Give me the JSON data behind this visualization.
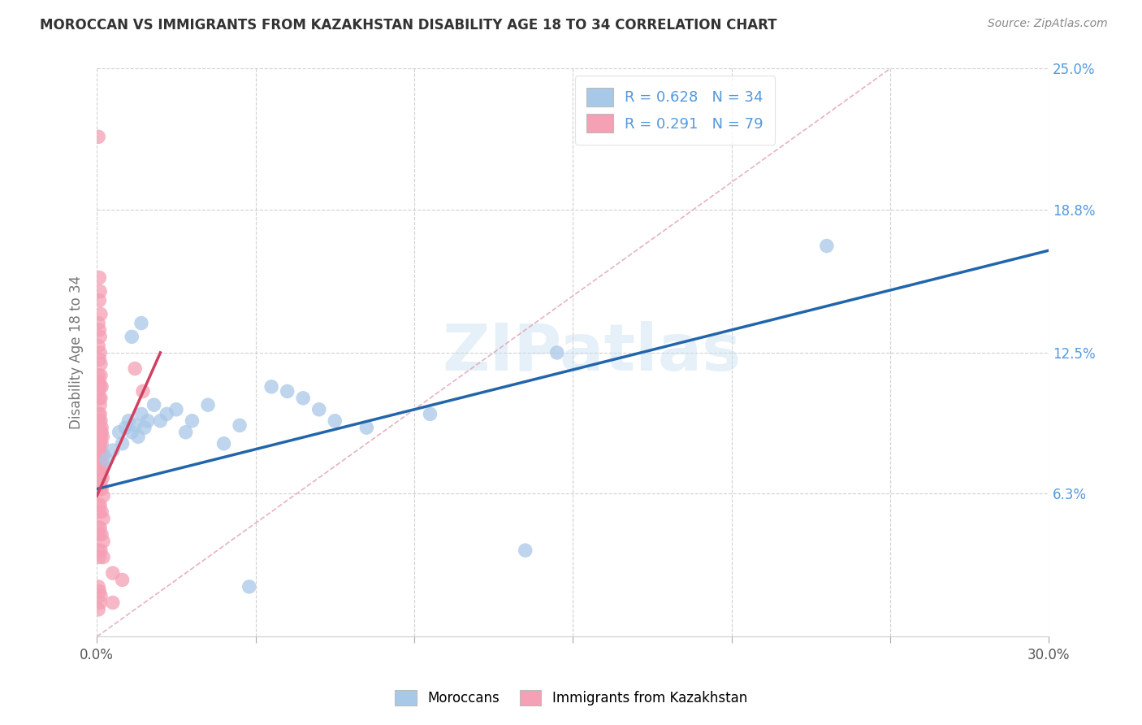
{
  "title": "MOROCCAN VS IMMIGRANTS FROM KAZAKHSTAN DISABILITY AGE 18 TO 34 CORRELATION CHART",
  "source": "Source: ZipAtlas.com",
  "ylabel": "Disability Age 18 to 34",
  "x_min": 0.0,
  "x_max": 30.0,
  "y_min": 0.0,
  "y_max": 25.0,
  "y_tick_right": [
    6.3,
    12.5,
    18.8,
    25.0
  ],
  "y_tick_right_labels": [
    "6.3%",
    "12.5%",
    "18.8%",
    "25.0%"
  ],
  "blue_color": "#a8c8e8",
  "blue_line_color": "#2166ac",
  "pink_color": "#f4a0b5",
  "pink_line_color": "#d04060",
  "diag_line_color": "#e0a0b0",
  "R_blue": 0.628,
  "N_blue": 34,
  "R_pink": 0.291,
  "N_pink": 79,
  "legend_label_blue": "Moroccans",
  "legend_label_pink": "Immigrants from Kazakhstan",
  "watermark": "ZIPatlas",
  "background_color": "#ffffff",
  "grid_color": "#cccccc",
  "title_color": "#333333",
  "right_tick_color": "#5599dd",
  "blue_scatter": [
    [
      0.3,
      7.8
    ],
    [
      0.5,
      8.2
    ],
    [
      0.7,
      9.0
    ],
    [
      0.8,
      8.5
    ],
    [
      0.9,
      9.2
    ],
    [
      1.0,
      9.5
    ],
    [
      1.1,
      9.0
    ],
    [
      1.2,
      9.3
    ],
    [
      1.3,
      8.8
    ],
    [
      1.4,
      9.8
    ],
    [
      1.5,
      9.2
    ],
    [
      1.6,
      9.5
    ],
    [
      1.8,
      10.2
    ],
    [
      2.0,
      9.5
    ],
    [
      2.2,
      9.8
    ],
    [
      2.5,
      10.0
    ],
    [
      2.8,
      9.0
    ],
    [
      3.0,
      9.5
    ],
    [
      3.5,
      10.2
    ],
    [
      4.0,
      8.5
    ],
    [
      4.5,
      9.3
    ],
    [
      1.1,
      13.2
    ],
    [
      1.4,
      13.8
    ],
    [
      5.5,
      11.0
    ],
    [
      6.0,
      10.8
    ],
    [
      6.5,
      10.5
    ],
    [
      7.0,
      10.0
    ],
    [
      7.5,
      9.5
    ],
    [
      8.5,
      9.2
    ],
    [
      10.5,
      9.8
    ],
    [
      14.5,
      12.5
    ],
    [
      23.0,
      17.2
    ],
    [
      4.8,
      2.2
    ],
    [
      13.5,
      3.8
    ]
  ],
  "pink_scatter": [
    [
      0.05,
      22.0
    ],
    [
      0.08,
      15.8
    ],
    [
      0.1,
      15.2
    ],
    [
      0.08,
      14.8
    ],
    [
      0.12,
      14.2
    ],
    [
      0.05,
      13.8
    ],
    [
      0.08,
      13.5
    ],
    [
      0.1,
      13.2
    ],
    [
      0.05,
      12.8
    ],
    [
      0.08,
      12.2
    ],
    [
      0.1,
      12.5
    ],
    [
      0.12,
      12.0
    ],
    [
      0.05,
      11.5
    ],
    [
      0.08,
      11.2
    ],
    [
      0.1,
      11.0
    ],
    [
      0.12,
      11.5
    ],
    [
      0.15,
      11.0
    ],
    [
      0.05,
      10.8
    ],
    [
      0.08,
      10.5
    ],
    [
      0.1,
      10.2
    ],
    [
      0.12,
      10.5
    ],
    [
      0.05,
      9.8
    ],
    [
      0.08,
      9.5
    ],
    [
      0.1,
      9.8
    ],
    [
      0.12,
      9.5
    ],
    [
      0.15,
      9.2
    ],
    [
      0.05,
      9.0
    ],
    [
      0.08,
      9.2
    ],
    [
      0.1,
      9.0
    ],
    [
      0.12,
      8.8
    ],
    [
      0.15,
      9.0
    ],
    [
      0.18,
      8.8
    ],
    [
      0.05,
      8.5
    ],
    [
      0.08,
      8.2
    ],
    [
      0.1,
      8.5
    ],
    [
      0.12,
      8.2
    ],
    [
      0.15,
      8.5
    ],
    [
      0.2,
      8.0
    ],
    [
      0.05,
      7.8
    ],
    [
      0.08,
      7.5
    ],
    [
      0.1,
      7.8
    ],
    [
      0.12,
      7.5
    ],
    [
      0.15,
      7.8
    ],
    [
      0.2,
      7.5
    ],
    [
      0.05,
      7.0
    ],
    [
      0.08,
      7.2
    ],
    [
      0.1,
      7.0
    ],
    [
      0.12,
      7.2
    ],
    [
      0.18,
      7.0
    ],
    [
      0.05,
      6.5
    ],
    [
      0.08,
      6.8
    ],
    [
      0.1,
      6.5
    ],
    [
      0.12,
      6.8
    ],
    [
      0.15,
      6.5
    ],
    [
      0.2,
      6.2
    ],
    [
      0.05,
      5.8
    ],
    [
      0.08,
      5.5
    ],
    [
      0.1,
      5.8
    ],
    [
      0.15,
      5.5
    ],
    [
      0.2,
      5.2
    ],
    [
      0.05,
      4.8
    ],
    [
      0.08,
      4.5
    ],
    [
      0.1,
      4.8
    ],
    [
      0.15,
      4.5
    ],
    [
      0.2,
      4.2
    ],
    [
      0.05,
      3.8
    ],
    [
      0.08,
      3.5
    ],
    [
      0.12,
      3.8
    ],
    [
      0.2,
      3.5
    ],
    [
      0.5,
      2.8
    ],
    [
      0.8,
      2.5
    ],
    [
      0.05,
      2.2
    ],
    [
      0.08,
      2.0
    ],
    [
      0.12,
      1.8
    ],
    [
      0.5,
      1.5
    ],
    [
      1.2,
      11.8
    ],
    [
      1.45,
      10.8
    ],
    [
      0.05,
      1.2
    ],
    [
      0.1,
      1.5
    ]
  ],
  "blue_line_x0": 0.0,
  "blue_line_y0": 6.5,
  "blue_line_x1": 30.0,
  "blue_line_y1": 17.0,
  "pink_line_x0": 0.0,
  "pink_line_y0": 6.2,
  "pink_line_x1": 2.0,
  "pink_line_y1": 12.5,
  "diag_x0": 0.0,
  "diag_y0": 0.0,
  "diag_x1": 25.0,
  "diag_y1": 25.0
}
